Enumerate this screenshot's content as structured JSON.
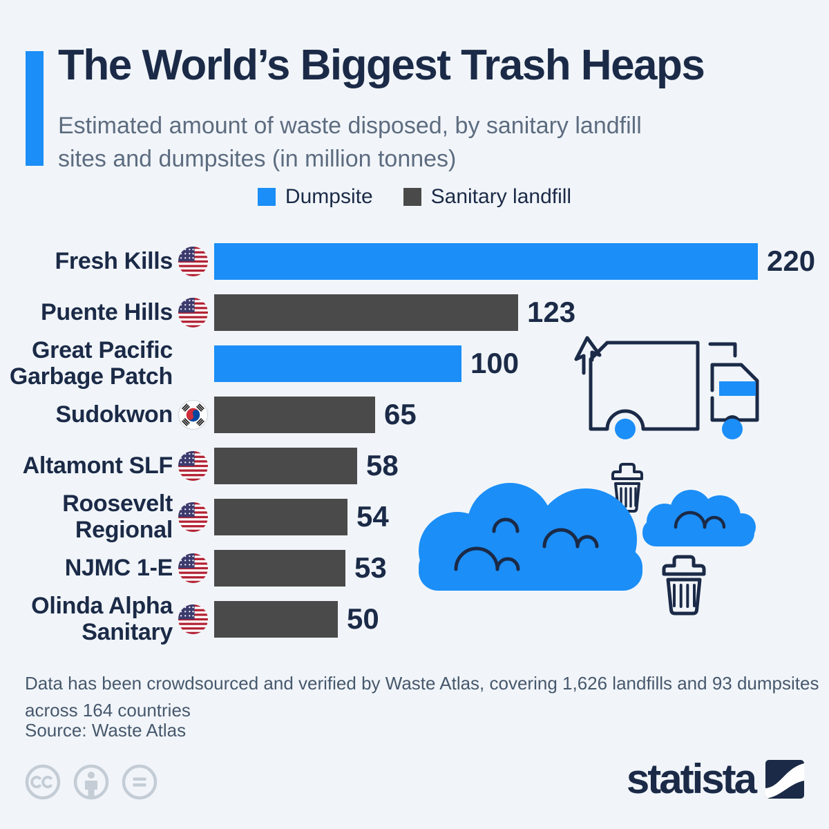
{
  "header": {
    "title": "The World’s Biggest Trash Heaps",
    "subtitle_lines": [
      "Estimated amount of waste disposed, by sanitary landfill",
      "sites and dumpsites (in million tonnes)"
    ]
  },
  "legend": {
    "items": [
      {
        "label": "Dumpsite",
        "color": "#1b8ef7"
      },
      {
        "label": "Sanitary landfill",
        "color": "#4a4a4a"
      }
    ]
  },
  "chart_data": {
    "type": "bar",
    "orientation": "horizontal",
    "unit": "million tonnes",
    "xlim": [
      0,
      220
    ],
    "categories": [
      "Fresh Kills",
      "Puente Hills",
      "Great Pacific Garbage Patch",
      "Sudokwon",
      "Altamont SLF",
      "Roosevelt Regional",
      "NJMC 1-E",
      "Olinda Alpha Sanitary"
    ],
    "values": [
      220,
      123,
      100,
      65,
      58,
      54,
      53,
      50
    ],
    "groups": [
      "Dumpsite",
      "Sanitary landfill",
      "Dumpsite",
      "Sanitary landfill",
      "Sanitary landfill",
      "Sanitary landfill",
      "Sanitary landfill",
      "Sanitary landfill"
    ],
    "flags": [
      "us",
      "us",
      null,
      "kr",
      "us",
      "us",
      "us",
      "us"
    ],
    "label_lines": [
      [
        "Fresh Kills"
      ],
      [
        "Puente Hills"
      ],
      [
        "Great Pacific",
        "Garbage Patch"
      ],
      [
        "Sudokwon"
      ],
      [
        "Altamont SLF"
      ],
      [
        "Roosevelt",
        "Regional"
      ],
      [
        "NJMC 1-E"
      ],
      [
        "Olinda Alpha",
        "Sanitary"
      ]
    ]
  },
  "decorations": [
    "garbage-truck-icon",
    "trash-can-small-icon",
    "cloud-large-icon",
    "cloud-small-icon",
    "trash-can-large-icon"
  ],
  "footer": {
    "note_lines": [
      "Data has been crowdsourced and verified by Waste Atlas, covering 1,626 landfills and 93 dumpsites",
      "across 164 countries"
    ],
    "source": "Source: Waste Atlas",
    "brand": "statista",
    "license_icons": [
      "cc-icon",
      "attribution-person-icon",
      "equals-icon"
    ]
  },
  "colors": {
    "background": "#f1f5f9",
    "dumpsite_blue": "#1b8ef7",
    "landfill_gray": "#4a4a4a",
    "navy": "#1b2a47",
    "subtitle_gray": "#5d6c80",
    "footer_gray": "#47586d",
    "license_gray": "#c4ccd5"
  }
}
